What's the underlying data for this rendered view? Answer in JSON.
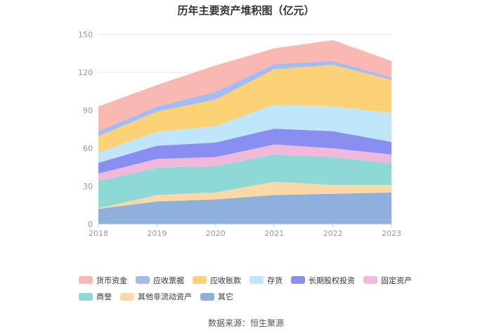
{
  "chart_data": {
    "type": "area",
    "stacked": true,
    "title": "历年主要资产堆积图（亿元）",
    "categories": [
      "2018",
      "2019",
      "2020",
      "2021",
      "2022",
      "2023"
    ],
    "ylim": [
      0,
      150
    ],
    "yticks": [
      0,
      30,
      60,
      90,
      120,
      150
    ],
    "grid": true,
    "legend_position": "bottom",
    "series": [
      {
        "name": "其它",
        "color": "#8fb0dc",
        "values": [
          12,
          18,
          19.5,
          23,
          24,
          25
        ]
      },
      {
        "name": "其他非流动资产",
        "color": "#fbd9a6",
        "values": [
          0.5,
          5,
          5.5,
          10.5,
          7,
          6
        ]
      },
      {
        "name": "商誉",
        "color": "#8ed9d6",
        "values": [
          21.5,
          21.5,
          21,
          21.5,
          22,
          17
        ]
      },
      {
        "name": "固定资产",
        "color": "#efbad9",
        "values": [
          6,
          7,
          7,
          8,
          7,
          7
        ]
      },
      {
        "name": "长期股权投资",
        "color": "#8a8ef0",
        "values": [
          8.5,
          10.5,
          11.5,
          12.5,
          13.5,
          10
        ]
      },
      {
        "name": "存货",
        "color": "#bfe6fa",
        "values": [
          8,
          11,
          13,
          19,
          19.5,
          23
        ]
      },
      {
        "name": "应收账款",
        "color": "#fcd277",
        "values": [
          13,
          16,
          21,
          28,
          33,
          26
        ]
      },
      {
        "name": "应收票据",
        "color": "#a5bcf3",
        "values": [
          4,
          4,
          6,
          4,
          3,
          2
        ]
      },
      {
        "name": "货币资金",
        "color": "#f9b8b1",
        "values": [
          19.5,
          17,
          21,
          12.5,
          16.5,
          13
        ]
      }
    ],
    "legend": [
      "货币资金",
      "应收票据",
      "应收账款",
      "存货",
      "长期股权投资",
      "固定资产",
      "商誉",
      "其他非流动资产",
      "其它"
    ]
  },
  "source": "数据来源：恒生聚源"
}
